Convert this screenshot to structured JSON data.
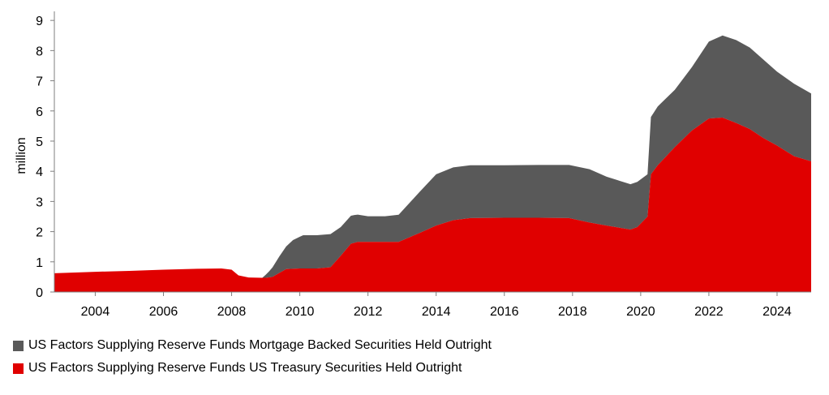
{
  "chart_data": {
    "type": "area",
    "stacked": true,
    "ylabel": "million",
    "ylim": [
      0,
      9.3
    ],
    "xlim": [
      2002.8,
      2025.0
    ],
    "yticks": [
      0,
      1,
      2,
      3,
      4,
      5,
      6,
      7,
      8,
      9
    ],
    "xticks": [
      2004,
      2006,
      2008,
      2010,
      2012,
      2014,
      2016,
      2018,
      2020,
      2022,
      2024
    ],
    "grid": false,
    "legend_position": "bottom-left",
    "series": [
      {
        "name": "US Factors Supplying Reserve Funds US Treasury Securities Held Outright",
        "color": "#e00000",
        "points": [
          [
            2002.8,
            0.62
          ],
          [
            2004.0,
            0.67
          ],
          [
            2005.0,
            0.7
          ],
          [
            2006.0,
            0.74
          ],
          [
            2007.0,
            0.77
          ],
          [
            2007.7,
            0.78
          ],
          [
            2008.0,
            0.74
          ],
          [
            2008.2,
            0.55
          ],
          [
            2008.5,
            0.48
          ],
          [
            2009.0,
            0.47
          ],
          [
            2009.2,
            0.5
          ],
          [
            2009.6,
            0.76
          ],
          [
            2010.0,
            0.78
          ],
          [
            2010.5,
            0.78
          ],
          [
            2010.9,
            0.82
          ],
          [
            2011.2,
            1.2
          ],
          [
            2011.5,
            1.6
          ],
          [
            2011.7,
            1.66
          ],
          [
            2012.0,
            1.66
          ],
          [
            2012.5,
            1.66
          ],
          [
            2012.9,
            1.66
          ],
          [
            2013.5,
            1.95
          ],
          [
            2014.0,
            2.2
          ],
          [
            2014.5,
            2.38
          ],
          [
            2015.0,
            2.45
          ],
          [
            2016.0,
            2.46
          ],
          [
            2017.0,
            2.46
          ],
          [
            2017.9,
            2.45
          ],
          [
            2018.5,
            2.3
          ],
          [
            2019.0,
            2.2
          ],
          [
            2019.7,
            2.07
          ],
          [
            2019.9,
            2.15
          ],
          [
            2020.2,
            2.5
          ],
          [
            2020.3,
            3.9
          ],
          [
            2020.5,
            4.2
          ],
          [
            2021.0,
            4.8
          ],
          [
            2021.5,
            5.35
          ],
          [
            2022.0,
            5.75
          ],
          [
            2022.4,
            5.78
          ],
          [
            2022.8,
            5.6
          ],
          [
            2023.2,
            5.4
          ],
          [
            2023.6,
            5.1
          ],
          [
            2024.0,
            4.85
          ],
          [
            2024.5,
            4.5
          ],
          [
            2025.0,
            4.33
          ]
        ]
      },
      {
        "name": "US Factors Supplying Reserve Funds Mortgage Backed Securities Held Outright",
        "color": "#595959",
        "points": [
          [
            2002.8,
            0
          ],
          [
            2008.9,
            0
          ],
          [
            2009.1,
            0.2
          ],
          [
            2009.4,
            0.55
          ],
          [
            2009.8,
            0.95
          ],
          [
            2010.1,
            1.1
          ],
          [
            2010.5,
            1.1
          ],
          [
            2010.9,
            1.1
          ],
          [
            2011.2,
            0.95
          ],
          [
            2011.6,
            0.92
          ],
          [
            2012.0,
            0.85
          ],
          [
            2012.5,
            0.85
          ],
          [
            2012.9,
            0.9
          ],
          [
            2013.5,
            1.35
          ],
          [
            2014.0,
            1.7
          ],
          [
            2014.5,
            1.75
          ],
          [
            2015.0,
            1.75
          ],
          [
            2016.0,
            1.74
          ],
          [
            2017.0,
            1.75
          ],
          [
            2017.9,
            1.76
          ],
          [
            2018.5,
            1.77
          ],
          [
            2019.0,
            1.62
          ],
          [
            2019.7,
            1.5
          ],
          [
            2019.9,
            1.5
          ],
          [
            2020.2,
            1.4
          ],
          [
            2020.3,
            1.9
          ],
          [
            2020.5,
            1.95
          ],
          [
            2021.0,
            1.9
          ],
          [
            2021.5,
            2.1
          ],
          [
            2022.0,
            2.55
          ],
          [
            2022.4,
            2.72
          ],
          [
            2022.8,
            2.75
          ],
          [
            2023.2,
            2.7
          ],
          [
            2023.6,
            2.6
          ],
          [
            2024.0,
            2.45
          ],
          [
            2024.5,
            2.4
          ],
          [
            2025.0,
            2.25
          ]
        ]
      }
    ]
  }
}
